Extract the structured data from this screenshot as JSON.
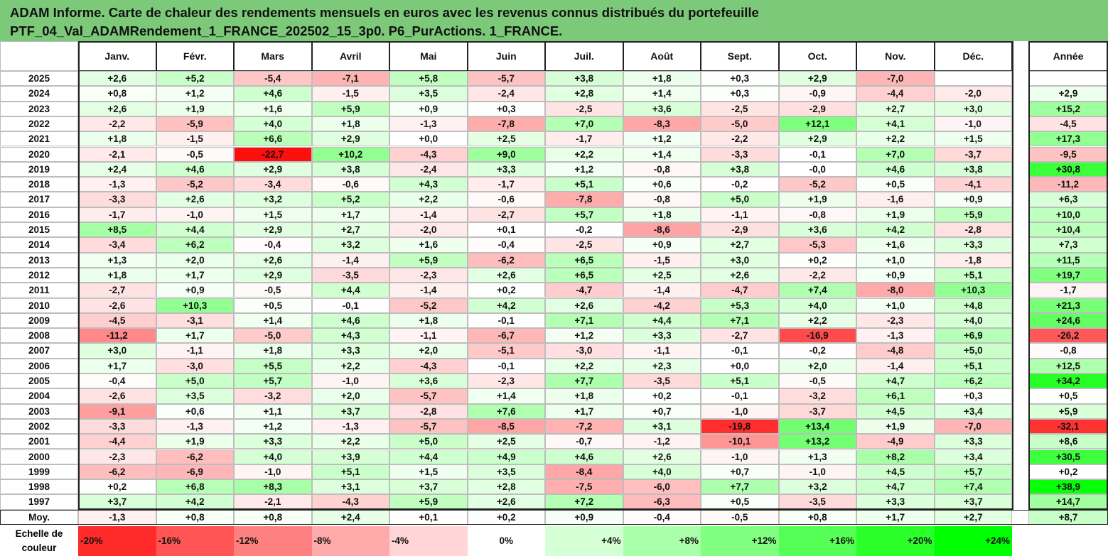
{
  "title": {
    "line1": "ADAM Informe. Carte de chaleur des rendements mensuels en euros avec les revenus connus distribués du portefeuille",
    "line2": "PTF_04_Val_ADAMRendement_1_FRANCE_202502_15_3p0. P6_PurActions. 1_FRANCE."
  },
  "colors": {
    "title_bg": "#7dc97a",
    "red_max": "#ff0000",
    "green_max": "#00ff00",
    "neutral": "#ffffff"
  },
  "chart_data": {
    "type": "heatmap",
    "columns": [
      "Janv.",
      "Févr.",
      "Mars",
      "Avril",
      "Mai",
      "Juin",
      "Juil.",
      "Août",
      "Sept.",
      "Oct.",
      "Nov.",
      "Déc."
    ],
    "annual_label": "Année",
    "rows": [
      {
        "year": "2025",
        "values": [
          "+2,6",
          "+5,2",
          "-5,4",
          "-7,1",
          "+5,8",
          "-5,7",
          "+3,8",
          "+1,8",
          "+0,3",
          "+2,9",
          "-7,0",
          ""
        ],
        "annual": ""
      },
      {
        "year": "2024",
        "values": [
          "+0,8",
          "+1,2",
          "+4,6",
          "-1,5",
          "+3,5",
          "-2,4",
          "+2,8",
          "+1,4",
          "+0,3",
          "-0,9",
          "-4,4",
          "-2,0"
        ],
        "annual": "+2,9"
      },
      {
        "year": "2023",
        "values": [
          "+2,6",
          "+1,9",
          "+1,6",
          "+5,9",
          "+0,9",
          "+0,3",
          "-2,5",
          "+3,6",
          "-2,5",
          "-2,9",
          "+2,7",
          "+3,0"
        ],
        "annual": "+15,2"
      },
      {
        "year": "2022",
        "values": [
          "-2,2",
          "-5,9",
          "+4,0",
          "+1,8",
          "-1,3",
          "-7,8",
          "+7,0",
          "-8,3",
          "-5,0",
          "+12,1",
          "+4,1",
          "-1,0"
        ],
        "annual": "-4,5"
      },
      {
        "year": "2021",
        "values": [
          "+1,8",
          "-1,5",
          "+6,6",
          "+2,9",
          "+0,0",
          "+2,5",
          "-1,7",
          "+1,2",
          "-2,2",
          "+2,9",
          "+2,2",
          "+1,5"
        ],
        "annual": "+17,3"
      },
      {
        "year": "2020",
        "values": [
          "-2,1",
          "-0,5",
          "-22,7",
          "+10,2",
          "-4,3",
          "+9,0",
          "+2,2",
          "+1,4",
          "-3,3",
          "-0,1",
          "+7,0",
          "-3,7"
        ],
        "annual": "-9,5"
      },
      {
        "year": "2019",
        "values": [
          "+2,4",
          "+4,6",
          "+2,9",
          "+3,8",
          "-2,4",
          "+3,3",
          "+1,2",
          "-0,8",
          "+3,8",
          "-0,0",
          "+4,6",
          "+3,8"
        ],
        "annual": "+30,8"
      },
      {
        "year": "2018",
        "values": [
          "-1,3",
          "-5,2",
          "-3,4",
          "-0,6",
          "+4,3",
          "-1,7",
          "+5,1",
          "+0,6",
          "-0,2",
          "-5,2",
          "+0,5",
          "-4,1"
        ],
        "annual": "-11,2"
      },
      {
        "year": "2017",
        "values": [
          "-3,3",
          "+2,6",
          "+3,2",
          "+5,2",
          "+2,2",
          "-0,6",
          "-7,8",
          "-0,8",
          "+5,0",
          "+1,9",
          "-1,6",
          "+0,9"
        ],
        "annual": "+6,3"
      },
      {
        "year": "2016",
        "values": [
          "-1,7",
          "-1,0",
          "+1,5",
          "+1,7",
          "-1,4",
          "-2,7",
          "+5,7",
          "+1,8",
          "-1,1",
          "-0,8",
          "+1,9",
          "+5,9"
        ],
        "annual": "+10,0"
      },
      {
        "year": "2015",
        "values": [
          "+8,5",
          "+4,4",
          "+2,9",
          "+2,7",
          "-2,0",
          "+0,1",
          "-0,2",
          "-8,6",
          "-2,9",
          "+3,6",
          "+4,2",
          "-2,8"
        ],
        "annual": "+10,4"
      },
      {
        "year": "2014",
        "values": [
          "-3,4",
          "+6,2",
          "-0,4",
          "+3,2",
          "+1,6",
          "-0,4",
          "-2,5",
          "+0,9",
          "+2,7",
          "-5,3",
          "+1,6",
          "+3,3"
        ],
        "annual": "+7,3"
      },
      {
        "year": "2013",
        "values": [
          "+1,3",
          "+2,0",
          "+2,6",
          "-1,4",
          "+5,9",
          "-6,2",
          "+6,5",
          "-1,5",
          "+3,0",
          "+0,2",
          "+1,0",
          "-1,8"
        ],
        "annual": "+11,5"
      },
      {
        "year": "2012",
        "values": [
          "+1,8",
          "+1,7",
          "+2,9",
          "-3,5",
          "-2,3",
          "+2,6",
          "+6,5",
          "+2,5",
          "+2,6",
          "-2,2",
          "+0,9",
          "+5,1"
        ],
        "annual": "+19,7"
      },
      {
        "year": "2011",
        "values": [
          "-2,7",
          "+0,9",
          "-0,5",
          "+4,4",
          "-1,4",
          "+0,2",
          "-4,7",
          "-1,4",
          "-4,7",
          "+7,4",
          "-8,0",
          "+10,3"
        ],
        "annual": "-1,7"
      },
      {
        "year": "2010",
        "values": [
          "-2,6",
          "+10,3",
          "+0,5",
          "-0,1",
          "-5,2",
          "+4,2",
          "+2,6",
          "-4,2",
          "+5,3",
          "+4,0",
          "+1,0",
          "+4,8"
        ],
        "annual": "+21,3"
      },
      {
        "year": "2009",
        "values": [
          "-4,5",
          "-3,1",
          "+1,4",
          "+4,6",
          "+1,8",
          "-0,1",
          "+7,1",
          "+4,4",
          "+7,1",
          "+2,2",
          "-2,3",
          "+4,0"
        ],
        "annual": "+24,6"
      },
      {
        "year": "2008",
        "values": [
          "-11,2",
          "+1,7",
          "-5,0",
          "+4,3",
          "-1,1",
          "-6,7",
          "+1,2",
          "+3,3",
          "-2,7",
          "-16,9",
          "-1,3",
          "+6,9"
        ],
        "annual": "-26,2"
      },
      {
        "year": "2007",
        "values": [
          "+3,0",
          "-1,1",
          "+1,8",
          "+3,3",
          "+2,0",
          "-5,1",
          "-3,0",
          "-1,1",
          "-0,1",
          "-0,2",
          "-4,8",
          "+5,0"
        ],
        "annual": "-0,8"
      },
      {
        "year": "2006",
        "values": [
          "+1,7",
          "-3,0",
          "+5,5",
          "+2,2",
          "-4,3",
          "-0,1",
          "+2,2",
          "+2,3",
          "+0,0",
          "+2,0",
          "-1,4",
          "+5,1"
        ],
        "annual": "+12,5"
      },
      {
        "year": "2005",
        "values": [
          "-0,4",
          "+5,0",
          "+5,7",
          "-1,0",
          "+3,6",
          "-2,3",
          "+7,7",
          "-3,5",
          "+5,1",
          "-0,5",
          "+4,7",
          "+6,2"
        ],
        "annual": "+34,2"
      },
      {
        "year": "2004",
        "values": [
          "-2,6",
          "+3,5",
          "-3,2",
          "+2,0",
          "-5,7",
          "+1,4",
          "+1,8",
          "+0,2",
          "-0,1",
          "-3,2",
          "+6,1",
          "+0,3"
        ],
        "annual": "+0,5"
      },
      {
        "year": "2003",
        "values": [
          "-9,1",
          "+0,6",
          "+1,1",
          "+3,7",
          "-2,8",
          "+7,6",
          "+1,7",
          "+0,7",
          "-1,0",
          "-3,7",
          "+4,5",
          "+3,4"
        ],
        "annual": "+5,9"
      },
      {
        "year": "2002",
        "values": [
          "-3,3",
          "-1,3",
          "+1,2",
          "-1,3",
          "-5,7",
          "-8,5",
          "-7,2",
          "+3,1",
          "-19,8",
          "+13,4",
          "+1,9",
          "-7,0"
        ],
        "annual": "-32,1"
      },
      {
        "year": "2001",
        "values": [
          "-4,4",
          "+1,9",
          "+3,3",
          "+2,2",
          "+5,0",
          "+2,5",
          "-0,7",
          "-1,2",
          "-10,1",
          "+13,2",
          "-4,9",
          "+3,3"
        ],
        "annual": "+8,6"
      },
      {
        "year": "2000",
        "values": [
          "-2,3",
          "-6,2",
          "+4,0",
          "+3,9",
          "+4,4",
          "+4,9",
          "+4,6",
          "+2,6",
          "-1,0",
          "+1,3",
          "+8,2",
          "+3,4"
        ],
        "annual": "+30,5"
      },
      {
        "year": "1999",
        "values": [
          "-6,2",
          "-6,9",
          "-1,0",
          "+5,1",
          "+1,5",
          "+3,5",
          "-8,4",
          "+4,0",
          "+0,7",
          "-1,0",
          "+4,5",
          "+5,7"
        ],
        "annual": "+0,2"
      },
      {
        "year": "1998",
        "values": [
          "+0,2",
          "+6,8",
          "+8,3",
          "+3,1",
          "+3,7",
          "+2,8",
          "-7,5",
          "-6,0",
          "+7,7",
          "+3,2",
          "+4,7",
          "+7,4"
        ],
        "annual": "+38,9"
      },
      {
        "year": "1997",
        "values": [
          "+3,7",
          "+4,2",
          "-2,1",
          "-4,3",
          "+5,9",
          "+2,6",
          "+7,2",
          "-6,3",
          "+0,5",
          "-3,5",
          "+3,3",
          "+3,7"
        ],
        "annual": "+14,7"
      }
    ],
    "average_row": {
      "label": "Moy.",
      "values": [
        "-1,3",
        "+0,8",
        "+0,8",
        "+2,4",
        "+0,1",
        "+0,2",
        "+0,9",
        "-0,4",
        "-0,5",
        "+0,8",
        "+1,7",
        "+2,7"
      ],
      "annual": "+8,7"
    },
    "color_scale": {
      "label": "Echelle de couleur",
      "steps": [
        "-20%",
        "-16%",
        "-12%",
        "-8%",
        "-4%",
        "0%",
        "+4%",
        "+8%",
        "+12%",
        "+16%",
        "+20%",
        "+24%"
      ],
      "step_values": [
        -20,
        -16,
        -12,
        -8,
        -4,
        0,
        4,
        8,
        12,
        16,
        20,
        24
      ]
    }
  }
}
